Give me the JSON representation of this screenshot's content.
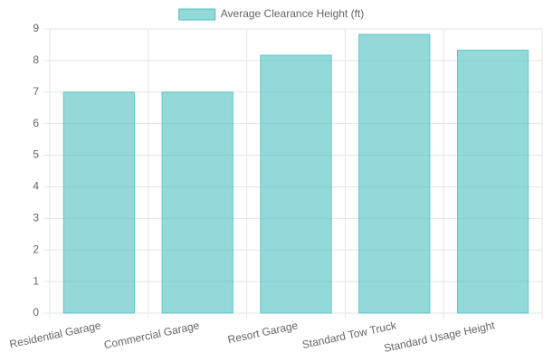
{
  "chart_data": {
    "type": "bar",
    "categories": [
      "Residential Garage",
      "Commercial Garage",
      "Resort Garage",
      "Standard Tow Truck",
      "Standard Usage Height"
    ],
    "series": [
      {
        "name": "Average Clearance Height (ft)",
        "color": "#4bc0c0",
        "values": [
          7,
          7,
          8.17,
          8.83,
          8.33
        ]
      }
    ],
    "ylim": [
      0,
      9
    ],
    "yticks": [
      0,
      1,
      2,
      3,
      4,
      5,
      6,
      7,
      8,
      9
    ],
    "grid": true,
    "legend": "top"
  }
}
